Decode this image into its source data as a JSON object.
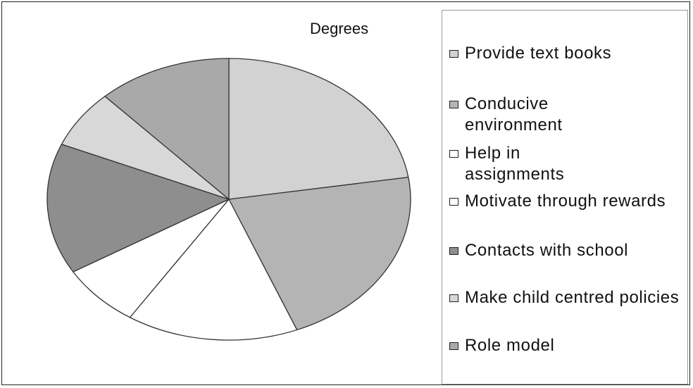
{
  "chart_data": {
    "type": "pie",
    "title": "Degrees",
    "categories": [
      "Provide text books",
      "Conducive environment",
      "Help in assignments",
      "Motivate through rewards",
      "Contacts with school",
      "Make child centred policies",
      "Role model"
    ],
    "values": [
      81,
      77,
      55,
      26,
      54,
      24,
      43
    ],
    "colors": [
      "#d2d2d2",
      "#b4b4b4",
      "#ffffff",
      "#ffffff",
      "#8e8e8e",
      "#d8d8d8",
      "#a9a9a9"
    ],
    "legend": "right"
  }
}
